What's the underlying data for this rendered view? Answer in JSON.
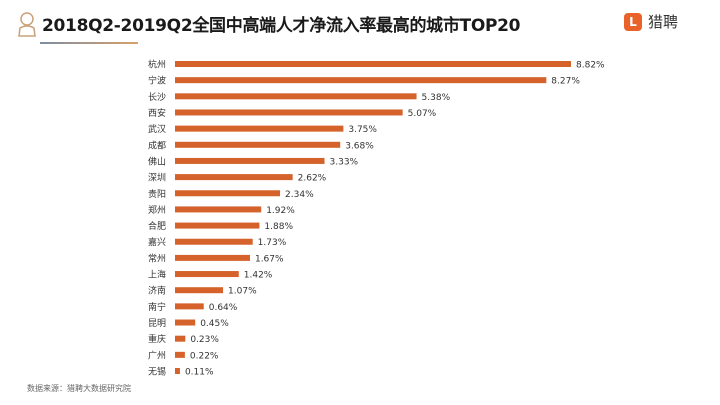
{
  "header": {
    "title": "2018Q2-2019Q2全国中高端人才净流入率最高的城市TOP20",
    "brand_logo": "L",
    "brand_name": "猎聘",
    "icon": "person-icon"
  },
  "footer": {
    "source": "数据来源：猎聘大数据研究院"
  },
  "colors": {
    "bar": "#d4622a",
    "accent": "#e8622a"
  },
  "chart_data": {
    "type": "bar",
    "orientation": "horizontal",
    "title": "2018Q2-2019Q2全国中高端人才净流入率最高的城市TOP20",
    "categories": [
      "杭州",
      "宁波",
      "长沙",
      "西安",
      "武汉",
      "成都",
      "佛山",
      "深圳",
      "贵阳",
      "郑州",
      "合肥",
      "嘉兴",
      "常州",
      "上海",
      "济南",
      "南宁",
      "昆明",
      "重庆",
      "广州",
      "无锡"
    ],
    "values": [
      8.82,
      8.27,
      5.38,
      5.07,
      3.75,
      3.68,
      3.33,
      2.62,
      2.34,
      1.92,
      1.88,
      1.73,
      1.67,
      1.42,
      1.07,
      0.64,
      0.45,
      0.23,
      0.22,
      0.11
    ],
    "labels": [
      "8.82%",
      "8.27%",
      "5.38%",
      "5.07%",
      "3.75%",
      "3.68%",
      "3.33%",
      "2.62%",
      "2.34%",
      "1.92%",
      "1.88%",
      "1.73%",
      "1.67%",
      "1.42%",
      "1.07%",
      "0.64%",
      "0.45%",
      "0.23%",
      "0.22%",
      "0.11%"
    ],
    "unit": "%",
    "xlabel": "",
    "ylabel": "",
    "xlim": [
      0,
      8.82
    ],
    "grid": false,
    "legend": "none"
  }
}
